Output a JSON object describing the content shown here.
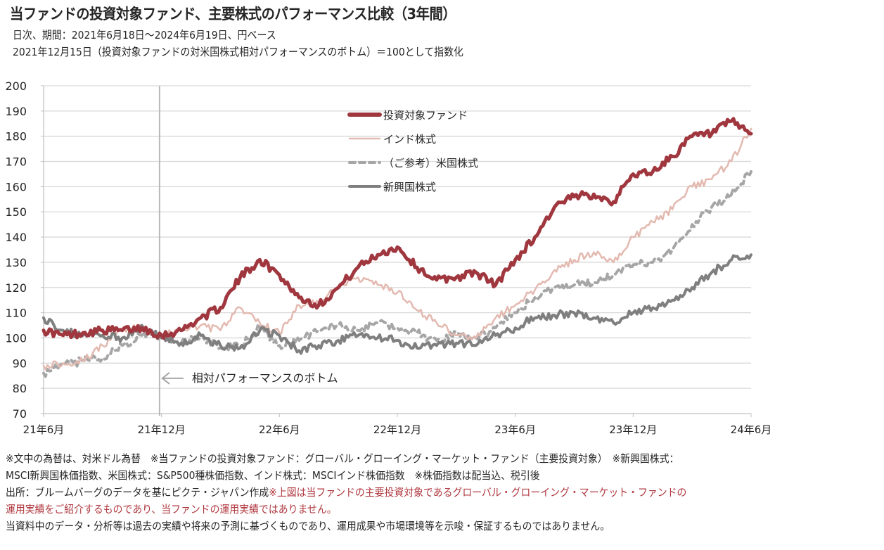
{
  "header": {
    "title": "当ファンドの投資対象ファンド、主要株式のパフォーマンス比較（3年間）",
    "subtitle1": "日次、期間：2021年6月18日～2024年6月19日、円ベース",
    "subtitle2": "2021年12月15日（投資対象ファンドの対米国株式相対パフォーマンスのボトム）＝100として指数化"
  },
  "chart_data": {
    "type": "line",
    "title": "当ファンドの投資対象ファンド、主要株式のパフォーマンス比較（3年間）",
    "xlabel": "",
    "ylabel": "",
    "ylim": [
      70,
      200
    ],
    "yticks": [
      "200",
      "190",
      "180",
      "170",
      "160",
      "150",
      "140",
      "130",
      "120",
      "110",
      "100",
      "90",
      "80",
      "70"
    ],
    "xticks": [
      "21年6月",
      "21年12月",
      "22年6月",
      "22年12月",
      "23年6月",
      "23年12月",
      "24年6月"
    ],
    "x_range_months": [
      0,
      36
    ],
    "grid": true,
    "legend_position": "top-center",
    "x": [
      0,
      1,
      2,
      3,
      4,
      5,
      6,
      7,
      8,
      9,
      10,
      11,
      12,
      13,
      14,
      15,
      16,
      17,
      18,
      19,
      20,
      21,
      22,
      23,
      24,
      25,
      26,
      27,
      28,
      29,
      30,
      31,
      32,
      33,
      34,
      35,
      36
    ],
    "series": [
      {
        "name": "投資対象ファンド",
        "color": "#a0373f",
        "style": "solid-thick",
        "values": [
          103,
          101,
          102,
          103,
          103,
          104,
          101,
          103,
          108,
          112,
          124,
          131,
          125,
          116,
          113,
          120,
          128,
          133,
          136,
          128,
          123,
          124,
          126,
          121,
          131,
          140,
          152,
          156,
          157,
          154,
          165,
          166,
          172,
          180,
          181,
          186,
          181
        ]
      },
      {
        "name": "インド株式",
        "color": "#e3b9b0",
        "style": "solid-thin",
        "values": [
          89,
          90,
          91,
          97,
          103,
          104,
          101,
          103,
          105,
          103,
          112,
          106,
          102,
          113,
          114,
          120,
          124,
          121,
          118,
          111,
          106,
          101,
          100,
          108,
          113,
          119,
          127,
          131,
          134,
          130,
          140,
          146,
          151,
          160,
          163,
          170,
          183
        ]
      },
      {
        "name": "（ご参考）米国株式",
        "color": "#a6a6a6",
        "style": "dashed",
        "values": [
          86,
          89,
          91,
          92,
          97,
          101,
          101,
          98,
          101,
          96,
          97,
          104,
          97,
          99,
          103,
          105,
          103,
          106,
          104,
          102,
          99,
          102,
          100,
          104,
          110,
          116,
          120,
          121,
          122,
          125,
          129,
          130,
          135,
          145,
          152,
          157,
          166
        ]
      },
      {
        "name": "新興国株式",
        "color": "#7f7f7f",
        "style": "solid-medium",
        "values": [
          108,
          103,
          101,
          101,
          100,
          105,
          100,
          98,
          101,
          97,
          96,
          103,
          101,
          95,
          97,
          99,
          101,
          100,
          99,
          96,
          97,
          98,
          97,
          101,
          104,
          108,
          109,
          110,
          108,
          106,
          110,
          112,
          115,
          120,
          126,
          131,
          133
        ]
      }
    ],
    "annotation": "相対パフォーマンスのボトム",
    "marker_month": 5.9
  },
  "legend": {
    "items": [
      "投資対象ファンド",
      "インド株式",
      "（ご参考）米国株式",
      "新興国株式"
    ]
  },
  "notes": {
    "line1": "※文中の為替は、対米ドル為替　※当ファンドの投資対象ファンド：グローバル・グローイング・マーケット・ファンド（主要投資対象）　※新興国株式：",
    "line2": "MSCI新興国株価指数、米国株式：S&P500種株価指数、インド株式：MSCIインド株価指数　※株価指数は配当込、税引後",
    "line3_source": "出所：ブルームバーグのデータを基にピクテ・ジャパン作成",
    "line3_red": "※上図は当ファンドの主要投資対象であるグローバル・グローイング・マーケット・ファンドの",
    "line4_red": "運用実績をご紹介するものであり、当ファンドの運用実績ではありません。",
    "line5": "当資料中のデータ・分析等は過去の実績や将来の予測に基づくものであり、運用成果や市場環境等を示唆・保証するものではありません。"
  }
}
